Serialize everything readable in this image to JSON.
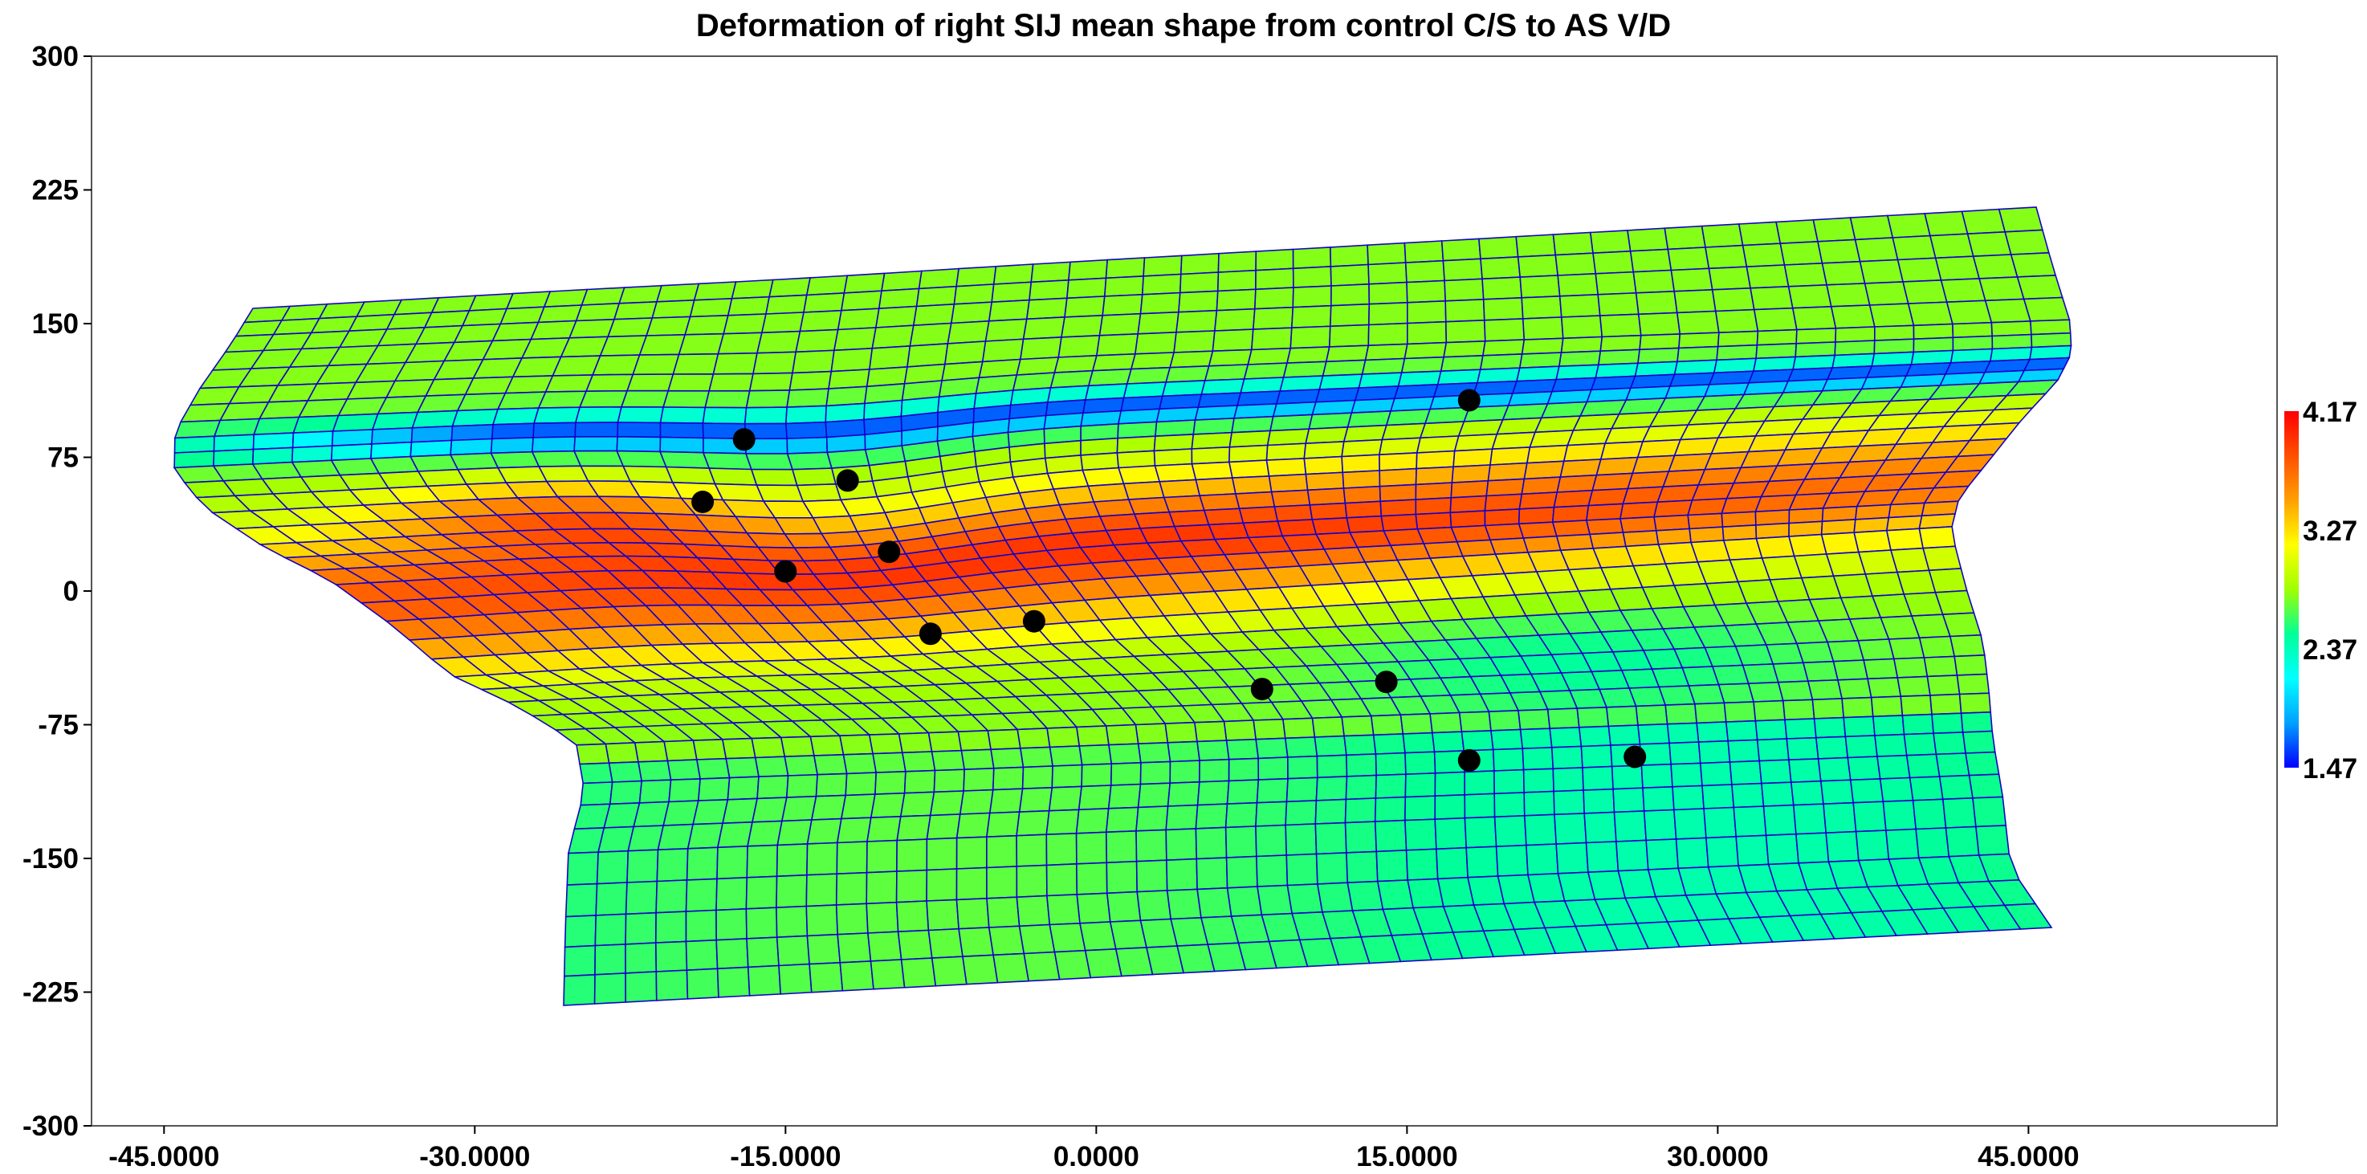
{
  "chart_data": {
    "type": "deformation-grid",
    "title": "Deformation of right SIJ mean shape from control C/S to AS V/D",
    "xlim": [
      -48.5,
      57
    ],
    "ylim": [
      -300,
      300
    ],
    "x_ticks": [
      "-45.0000",
      "-30.0000",
      "-15.0000",
      "0.0000",
      "15.0000",
      "30.0000",
      "45.0000"
    ],
    "x_tick_values": [
      -45,
      -30,
      -15,
      0,
      15,
      30,
      45
    ],
    "y_ticks": [
      "300",
      "225",
      "150",
      "75",
      "0",
      "-75",
      "-150",
      "-225",
      "-300"
    ],
    "y_tick_values": [
      300,
      225,
      150,
      75,
      0,
      -75,
      -150,
      -225,
      -300
    ],
    "colorbar": {
      "min": 1.47,
      "max": 4.17,
      "tick_labels": [
        "4.17",
        "3.27",
        "2.37",
        "1.47"
      ],
      "tick_values": [
        4.17,
        3.27,
        2.37,
        1.47
      ],
      "colors": [
        "#0000ff",
        "#00a0ff",
        "#00ffff",
        "#00ff99",
        "#a0ff00",
        "#ffff00",
        "#ffa000",
        "#ff5000",
        "#ff0000"
      ]
    },
    "grid_line_color": "#1400c8",
    "landmark_color": "#000000",
    "landmarks": [
      {
        "x": 18,
        "y": 107
      },
      {
        "x": -17,
        "y": 85
      },
      {
        "x": -12,
        "y": 62
      },
      {
        "x": -19,
        "y": 50
      },
      {
        "x": -10,
        "y": 22
      },
      {
        "x": -15,
        "y": 11
      },
      {
        "x": -8,
        "y": -24
      },
      {
        "x": -3,
        "y": -17
      },
      {
        "x": 8,
        "y": -55
      },
      {
        "x": 14,
        "y": -51
      },
      {
        "x": 18,
        "y": -95
      },
      {
        "x": 26,
        "y": -93
      }
    ]
  }
}
